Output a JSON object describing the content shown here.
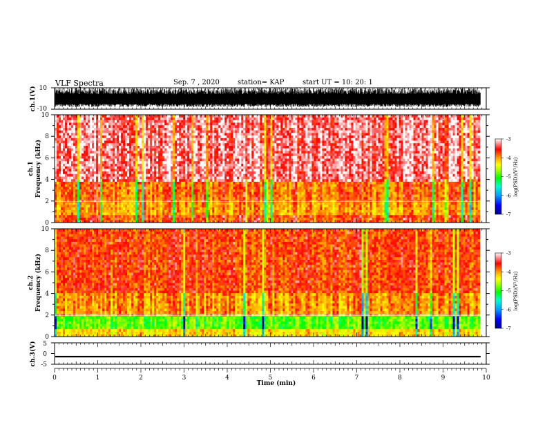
{
  "header": {
    "title": "VLF Spectra",
    "date": "Sep. 7 , 2020",
    "station": "station= KAP",
    "start_ut": "start UT =  10: 20: 1"
  },
  "colors": {
    "spectral": [
      "#000090",
      "#0000ff",
      "#00a0ff",
      "#00ffd0",
      "#00ff00",
      "#a0ff00",
      "#ffff00",
      "#ffa000",
      "#ff0000",
      "#ffffff"
    ],
    "waveform": "#000000"
  },
  "chart_data": [
    {
      "type": "line",
      "name": "ch1-waveform",
      "ylabel": "ch.1(V)",
      "ylim": [
        -10,
        10
      ],
      "y_ticks": [
        "10",
        "-10"
      ],
      "xlim": [
        0,
        10
      ],
      "note_values": "dense broadband noise between about -8 and 10 V"
    },
    {
      "type": "heatmap",
      "name": "ch1-spectrogram",
      "ylabel": "ch.1\nFrequency (kHz)",
      "ylabel_channel": "ch.1",
      "ylabel_freq": "Frequency (kHz)",
      "ylim": [
        0,
        10
      ],
      "y_ticks": [
        "0",
        "2",
        "4",
        "6",
        "8",
        "10"
      ],
      "xlim": [
        0,
        9.85
      ],
      "colorbar": {
        "label": "log(PSD)(V²/Hz)",
        "range": [
          -7,
          -3
        ],
        "ticks": [
          "-3",
          "-4",
          "-5",
          "-6",
          "-7"
        ]
      },
      "band_levels": [
        {
          "f_lo": 0.0,
          "f_hi": 0.8,
          "log_psd": -3.6
        },
        {
          "f_lo": 0.8,
          "f_hi": 2.0,
          "log_psd": -3.9
        },
        {
          "f_lo": 2.0,
          "f_hi": 3.8,
          "log_psd": -3.7
        },
        {
          "f_lo": 3.8,
          "f_hi": 10.0,
          "log_psd": -3.2
        }
      ]
    },
    {
      "type": "heatmap",
      "name": "ch2-spectrogram",
      "ylabel": "ch.2\nFrequency (kHz)",
      "ylabel_channel": "ch.2",
      "ylabel_freq": "Frequency (kHz)",
      "ylim": [
        0,
        10
      ],
      "y_ticks": [
        "0",
        "2",
        "4",
        "6",
        "8",
        "10"
      ],
      "xlim": [
        0,
        9.85
      ],
      "colorbar": {
        "label": "log(PSD)(V²/Hz)",
        "range": [
          -7,
          -3
        ],
        "ticks": [
          "-3",
          "-4",
          "-5",
          "-6",
          "-7"
        ]
      },
      "band_levels": [
        {
          "f_lo": 0.0,
          "f_hi": 0.8,
          "log_psd": -4.2
        },
        {
          "f_lo": 0.8,
          "f_hi": 1.8,
          "log_psd": -5.0
        },
        {
          "f_lo": 1.8,
          "f_hi": 4.0,
          "log_psd": -3.9
        },
        {
          "f_lo": 4.0,
          "f_hi": 10.0,
          "log_psd": -3.6
        }
      ]
    },
    {
      "type": "line",
      "name": "ch3-waveform",
      "ylabel": "ch.3(V)",
      "ylim": [
        -5,
        5
      ],
      "y_ticks": [
        "5",
        "0",
        "-5"
      ],
      "xlim": [
        0,
        10
      ],
      "level_band": [
        -1.8,
        -1.1
      ]
    }
  ],
  "x_axis": {
    "label": "Time (min)",
    "range": [
      0,
      10
    ],
    "ticks": [
      "0",
      "1",
      "2",
      "3",
      "4",
      "5",
      "6",
      "7",
      "8",
      "9",
      "10"
    ]
  }
}
